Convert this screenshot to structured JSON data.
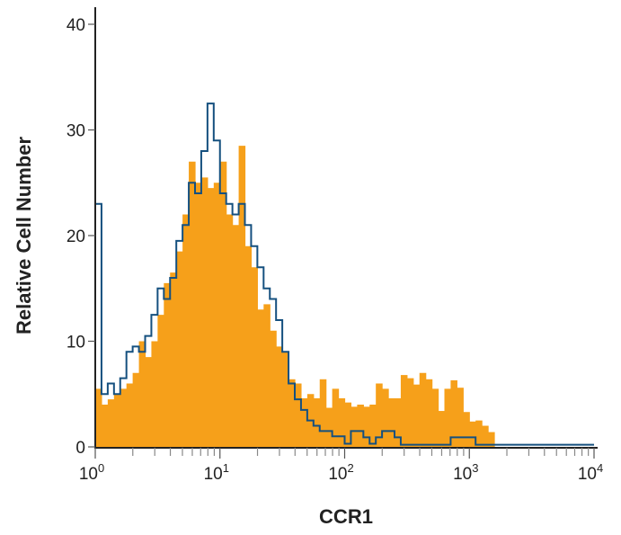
{
  "chart_data": {
    "type": "histogram",
    "title": "",
    "xlabel": "CCR1",
    "ylabel": "Relative Cell Number",
    "x_scale": "log",
    "xlim": [
      1,
      10000
    ],
    "ylim": [
      0,
      40
    ],
    "x_ticks": [
      {
        "base": "10",
        "exp": "0",
        "value": 1
      },
      {
        "base": "10",
        "exp": "1",
        "value": 10
      },
      {
        "base": "10",
        "exp": "2",
        "value": 100
      },
      {
        "base": "10",
        "exp": "3",
        "value": 1000
      },
      {
        "base": "10",
        "exp": "4",
        "value": 10000
      }
    ],
    "y_ticks": [
      "0",
      "10",
      "20",
      "30",
      "40"
    ],
    "grid": false,
    "bin_starts": [
      1,
      1.122,
      1.259,
      1.413,
      1.585,
      1.778,
      1.995,
      2.239,
      2.512,
      2.818,
      3.162,
      3.548,
      3.981,
      4.467,
      5.012,
      5.623,
      6.31,
      7.079,
      7.943,
      8.913,
      10,
      11.22,
      12.59,
      14.13,
      15.85,
      17.78,
      19.95,
      22.39,
      25.12,
      28.18,
      31.62,
      35.48,
      39.81,
      44.67,
      50.12,
      56.23,
      63.1,
      70.79,
      79.43,
      89.13,
      100,
      112.2,
      125.9,
      141.3,
      158.5,
      177.8,
      199.5,
      223.9,
      251.2,
      281.8,
      316.2,
      354.8,
      398.1,
      446.7,
      501.2,
      562.3,
      631,
      707.9,
      794.3,
      891.3,
      1000,
      1122,
      1259,
      1413,
      1585,
      1778,
      1995,
      2239,
      2512,
      2818,
      3162,
      3548,
      3981,
      4467,
      5012,
      5623,
      6310,
      7079,
      7943,
      8913
    ],
    "series": [
      {
        "style": "filled",
        "color": "#F6A01A",
        "values": [
          5.5,
          4,
          4.5,
          5,
          5.5,
          6,
          7,
          10,
          8.5,
          10,
          12.5,
          15.5,
          16.5,
          18.5,
          22,
          27,
          25,
          25.5,
          24.5,
          25,
          27,
          22,
          21,
          28.5,
          19,
          17,
          13,
          13.5,
          11,
          9.5,
          9,
          6.4,
          6,
          4.6,
          5,
          4.6,
          6.4,
          3.7,
          5.5,
          4.6,
          4.2,
          3.8,
          4,
          3.8,
          4,
          6,
          5.5,
          4.6,
          4.6,
          6.8,
          6.5,
          5.9,
          7,
          6.4,
          5.5,
          3.4,
          5.5,
          6.3,
          5.6,
          3.3,
          2.4,
          2.5,
          2,
          1.4,
          0,
          0,
          0,
          0,
          0,
          0,
          0,
          0,
          0,
          0,
          0,
          0,
          0,
          0,
          0,
          0
        ]
      },
      {
        "style": "outline",
        "color": "#15507F",
        "values": [
          23,
          5,
          6,
          5,
          6.5,
          9,
          9.5,
          9,
          10.5,
          12.5,
          15,
          14,
          16,
          19.5,
          21,
          25,
          24,
          28,
          32.5,
          29,
          24,
          23,
          22,
          23,
          21,
          19,
          17,
          15,
          14,
          12,
          9,
          6,
          4.5,
          3.5,
          2.5,
          2,
          1.5,
          1.5,
          1,
          1,
          0.3,
          1.5,
          1.5,
          0.9,
          0.3,
          0.9,
          1.5,
          1.5,
          0.9,
          0.2,
          0.2,
          0.2,
          0.2,
          0.2,
          0.2,
          0.2,
          0.2,
          0.9,
          0.9,
          0.9,
          0.9,
          0.2,
          0.2,
          0.2,
          0.2,
          0.2,
          0.2,
          0.2,
          0.2,
          0.2,
          0.2,
          0.2,
          0.2,
          0.2,
          0.2,
          0.2,
          0.2,
          0.2,
          0.2,
          0.2
        ]
      }
    ]
  }
}
